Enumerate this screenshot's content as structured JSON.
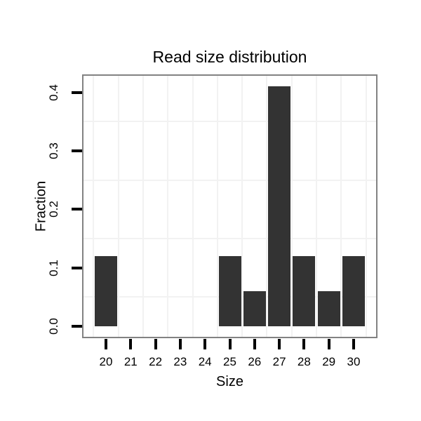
{
  "chart_data": {
    "type": "bar",
    "title": "Read size distribution",
    "xlabel": "Size",
    "ylabel": "Fraction",
    "categories": [
      20,
      21,
      22,
      23,
      24,
      25,
      26,
      27,
      28,
      29,
      30
    ],
    "values": [
      0.12,
      0,
      0,
      0,
      0,
      0.12,
      0.06,
      0.41,
      0.12,
      0.06,
      0.12
    ],
    "x_tick_labels": [
      "20",
      "21",
      "22",
      "23",
      "24",
      "25",
      "26",
      "27",
      "28",
      "29",
      "30"
    ],
    "y_ticks": [
      0.0,
      0.1,
      0.2,
      0.3,
      0.4
    ],
    "y_tick_labels": [
      "0.0",
      "0.1",
      "0.2",
      "0.3",
      "0.4"
    ],
    "xlim": [
      19.0,
      31.0
    ],
    "ylim": [
      -0.022,
      0.43
    ],
    "grid": "minor-gridlines-only",
    "minor_x_gridlines": [
      19.5,
      20.5,
      21.5,
      22.5,
      23.5,
      24.5,
      25.5,
      26.5,
      27.5,
      28.5,
      29.5,
      30.5
    ],
    "minor_y_gridlines": [
      0.05,
      0.15,
      0.25,
      0.35
    ],
    "legend": "none",
    "colors": {
      "bar": "#333333",
      "gridline": "#f2f2f2",
      "frame": "#828282",
      "tick": "#000000",
      "text": "#000000",
      "panel_background": "#ffffff",
      "figure_background": "#ffffff"
    }
  }
}
